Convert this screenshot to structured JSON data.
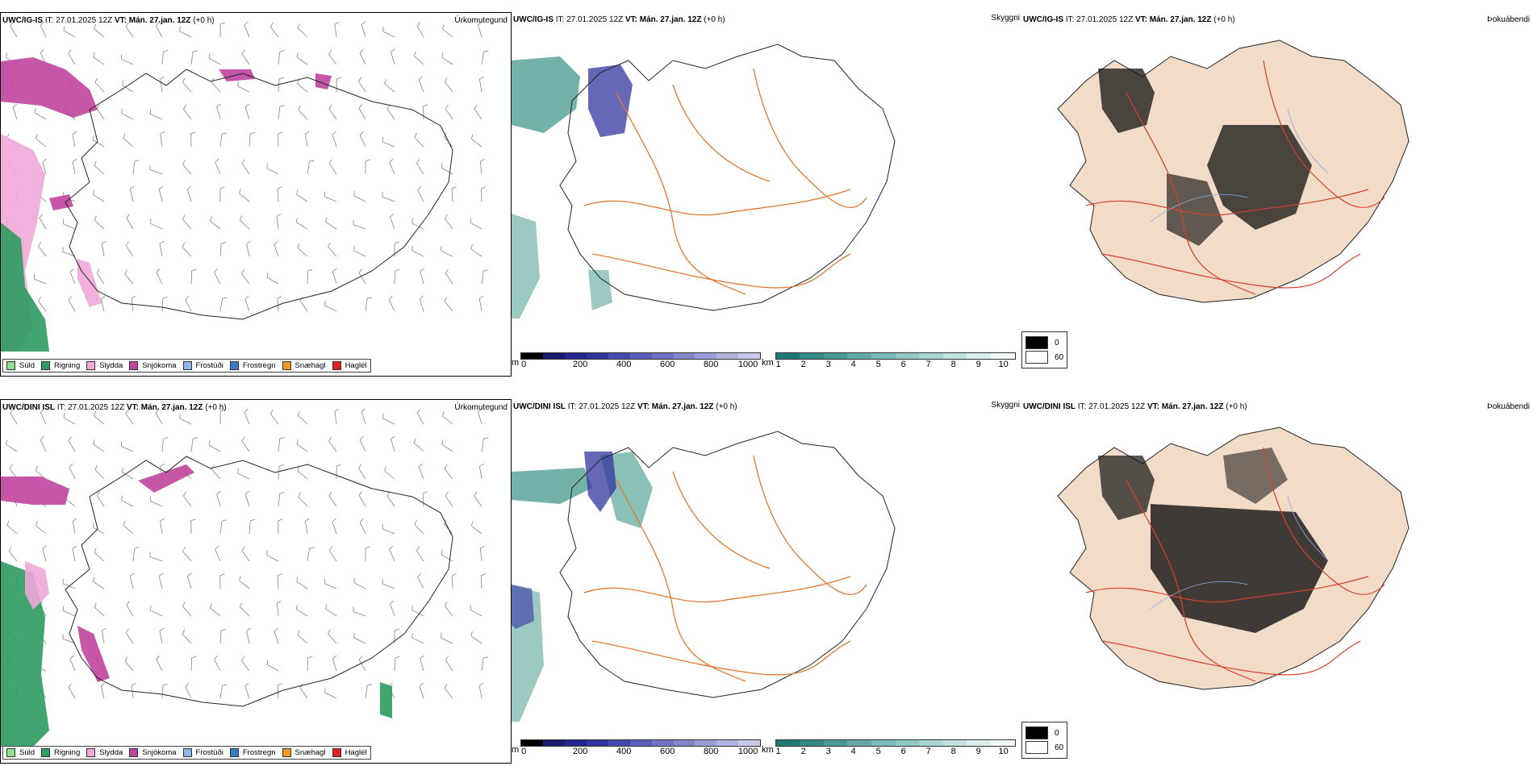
{
  "rows": [
    {
      "model": "UWC/IG-IS",
      "it_label": "IT:",
      "it_value": "27.01.2025 12Z",
      "vt_label": "VT:",
      "vt_value": "Mán. 27.jan. 12Z",
      "lead": "(+0 h)"
    },
    {
      "model": "UWC/DINI ISL",
      "it_label": "IT:",
      "it_value": "27.01.2025 12Z",
      "vt_label": "VT:",
      "vt_value": "Mán. 27.jan. 12Z",
      "lead": "(+0 h)"
    }
  ],
  "labels": {
    "precip_type": "Úrkomutegund",
    "visibility": "Skyggni",
    "cloud_cover": "Þokuábendi"
  },
  "precip_legend": [
    {
      "label": "Súld",
      "color": "#8fe08f"
    },
    {
      "label": "Rigning",
      "color": "#2e9b5f"
    },
    {
      "label": "Slydda",
      "color": "#f0a8d8"
    },
    {
      "label": "Snjókoma",
      "color": "#c0449f"
    },
    {
      "label": "Frostúði",
      "color": "#8ab8e8"
    },
    {
      "label": "Frostregn",
      "color": "#3a7bc8"
    },
    {
      "label": "Snæhagl",
      "color": "#f09a20"
    },
    {
      "label": "Haglél",
      "color": "#e02020"
    }
  ],
  "cloudbase_colorbar": {
    "unit": "m",
    "ticks": [
      "0",
      "200",
      "400",
      "600",
      "800",
      "1000"
    ],
    "colors": [
      "#000000",
      "#1a1a6e",
      "#262690",
      "#3434a0",
      "#4848b0",
      "#5c5cba",
      "#7070c4",
      "#8686cc",
      "#9c9cd6",
      "#b2b2de",
      "#c8c8e8"
    ]
  },
  "visibility_colorbar": {
    "unit": "km",
    "ticks": [
      "1",
      "2",
      "3",
      "4",
      "5",
      "6",
      "7",
      "8",
      "9",
      "10"
    ],
    "colors": [
      "#1f7a74",
      "#338a84",
      "#4a9a94",
      "#62aaa4",
      "#7ababa",
      "#92c8c4",
      "#aad6d2",
      "#c2e2de",
      "#dceeec",
      "#f2f8f8"
    ]
  },
  "shade_legend": [
    {
      "label": "0",
      "color": "#000000"
    },
    {
      "label": "60",
      "color": "#ffffff"
    }
  ],
  "map_colors": {
    "rain": "#2e9b5f",
    "snow": "#c0449f",
    "sleet": "#f0a8d8",
    "land_tan": "#f2dcc8",
    "roads": "#e07a30",
    "roads_red": "#d6402a",
    "rivers": "#8aa8e8",
    "teal": "#5aa59a",
    "cloud_dark": "#111111"
  }
}
